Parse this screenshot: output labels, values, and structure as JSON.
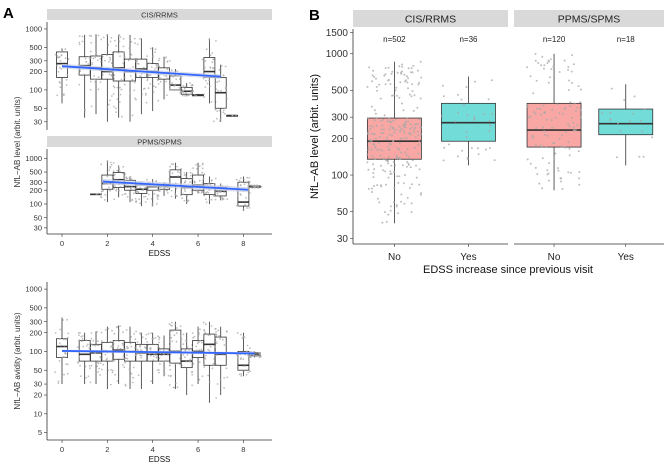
{
  "colors": {
    "strip_bg": "#d9d9d9",
    "trend_line": "#3366ff",
    "trend_ci": "#c8cfe6",
    "point": "#a8a8a8",
    "no_fill": "#f8a7a4",
    "yes_fill": "#72dcd8",
    "box_line": "#333333"
  },
  "panel_a": {
    "label": "A",
    "x_label": "EDSS",
    "x_ticks": [
      0,
      2,
      4,
      6,
      8
    ],
    "subpanels": [
      {
        "strip": "CIS/RRMS",
        "y_label": "NfL−AB level (arbit. units)",
        "y_ticks": [
          30,
          50,
          100,
          200,
          300,
          500,
          1000
        ],
        "y_tick_labels": [
          "30",
          "50",
          "100",
          "200",
          "300",
          "500",
          "1000"
        ],
        "y_range": [
          22,
          1300
        ],
        "show_x_axis": false,
        "trend": {
          "x": [
            0,
            7
          ],
          "y": [
            245,
            165
          ],
          "ci_width": 0.09
        },
        "boxes": [
          {
            "x": 0,
            "min": 60,
            "q1": 160,
            "median": 270,
            "q3": 420,
            "max": 480
          },
          {
            "x": 1,
            "min": 35,
            "q1": 175,
            "median": 250,
            "q3": 350,
            "max": 800
          },
          {
            "x": 1.5,
            "min": 40,
            "q1": 150,
            "median": 230,
            "q3": 360,
            "max": 820
          },
          {
            "x": 2,
            "min": 30,
            "q1": 150,
            "median": 200,
            "q3": 380,
            "max": 820
          },
          {
            "x": 2.5,
            "min": 35,
            "q1": 140,
            "median": 230,
            "q3": 420,
            "max": 800
          },
          {
            "x": 3,
            "min": 30,
            "q1": 140,
            "median": 200,
            "q3": 320,
            "max": 800
          },
          {
            "x": 3.5,
            "min": 40,
            "q1": 160,
            "median": 220,
            "q3": 320,
            "max": 700
          },
          {
            "x": 4,
            "min": 45,
            "q1": 160,
            "median": 200,
            "q3": 270,
            "max": 500
          },
          {
            "x": 4.5,
            "min": 70,
            "q1": 150,
            "median": 190,
            "q3": 230,
            "max": 350
          },
          {
            "x": 5,
            "min": 100,
            "q1": 100,
            "median": 120,
            "q3": 170,
            "max": 220
          },
          {
            "x": 5.5,
            "min": 80,
            "q1": 85,
            "median": 95,
            "q3": 110,
            "max": 130
          },
          {
            "x": 6,
            "min": 80,
            "q1": 80,
            "median": 82,
            "q3": 84,
            "max": 86
          },
          {
            "x": 6.5,
            "min": 60,
            "q1": 160,
            "median": 200,
            "q3": 340,
            "max": 700
          },
          {
            "x": 7,
            "min": 30,
            "q1": 50,
            "median": 90,
            "q3": 160,
            "max": 260
          },
          {
            "x": 7.5,
            "min": 38,
            "q1": 38,
            "median": 38,
            "q3": 38,
            "max": 38
          }
        ]
      },
      {
        "strip": "PPMS/SPMS",
        "y_label": "",
        "y_ticks": [
          30,
          50,
          100,
          200,
          300,
          500,
          1000
        ],
        "y_tick_labels": [
          "30",
          "50",
          "100",
          "200",
          "300",
          "500",
          "1000"
        ],
        "y_range": [
          22,
          1600
        ],
        "show_x_axis": true,
        "trend": {
          "x": [
            1.8,
            8.2
          ],
          "y": [
            310,
            205
          ],
          "ci_width": 0.14
        },
        "boxes": [
          {
            "x": 1.5,
            "min": 160,
            "q1": 160,
            "median": 163,
            "q3": 166,
            "max": 166
          },
          {
            "x": 2,
            "min": 110,
            "q1": 210,
            "median": 280,
            "q3": 430,
            "max": 900
          },
          {
            "x": 2.5,
            "min": 140,
            "q1": 230,
            "median": 340,
            "q3": 490,
            "max": 700
          },
          {
            "x": 3,
            "min": 110,
            "q1": 200,
            "median": 240,
            "q3": 330,
            "max": 400
          },
          {
            "x": 3.5,
            "min": 90,
            "q1": 170,
            "median": 210,
            "q3": 260,
            "max": 300
          },
          {
            "x": 4,
            "min": 90,
            "q1": 200,
            "median": 240,
            "q3": 270,
            "max": 350
          },
          {
            "x": 4.5,
            "min": 150,
            "q1": 210,
            "median": 240,
            "q3": 270,
            "max": 300
          },
          {
            "x": 5,
            "min": 130,
            "q1": 250,
            "median": 390,
            "q3": 560,
            "max": 800
          },
          {
            "x": 5.5,
            "min": 100,
            "q1": 160,
            "median": 230,
            "q3": 360,
            "max": 500
          },
          {
            "x": 6,
            "min": 170,
            "q1": 200,
            "median": 260,
            "q3": 430,
            "max": 800
          },
          {
            "x": 6.5,
            "min": 100,
            "q1": 160,
            "median": 230,
            "q3": 280,
            "max": 400
          },
          {
            "x": 7,
            "min": 120,
            "q1": 150,
            "median": 190,
            "q3": 230,
            "max": 280
          },
          {
            "x": 8,
            "min": 70,
            "q1": 90,
            "median": 110,
            "q3": 300,
            "max": 400
          },
          {
            "x": 8.5,
            "min": 220,
            "q1": 230,
            "median": 240,
            "q3": 250,
            "max": 260
          }
        ]
      },
      {
        "strip": "",
        "y_label": "NfL−AB avidity (arbit. units)",
        "y_ticks": [
          5,
          10,
          20,
          30,
          50,
          100,
          200,
          300,
          500,
          1000
        ],
        "y_tick_labels": [
          "5",
          "10",
          "20",
          "30",
          "50",
          "100",
          "200",
          "300",
          "500",
          "1000"
        ],
        "y_range": [
          3.8,
          1300
        ],
        "show_x_axis": true,
        "trend": {
          "x": [
            0,
            8.5
          ],
          "y": [
            102,
            93
          ],
          "ci_width": 0.05
        },
        "boxes": [
          {
            "x": 0,
            "min": 30,
            "q1": 80,
            "median": 120,
            "q3": 160,
            "max": 350
          },
          {
            "x": 1,
            "min": 30,
            "q1": 70,
            "median": 90,
            "q3": 150,
            "max": 200
          },
          {
            "x": 1.5,
            "min": 30,
            "q1": 70,
            "median": 95,
            "q3": 130,
            "max": 210
          },
          {
            "x": 2,
            "min": 25,
            "q1": 70,
            "median": 100,
            "q3": 140,
            "max": 250
          },
          {
            "x": 2.5,
            "min": 30,
            "q1": 75,
            "median": 105,
            "q3": 150,
            "max": 260
          },
          {
            "x": 3,
            "min": 25,
            "q1": 70,
            "median": 100,
            "q3": 140,
            "max": 250
          },
          {
            "x": 3.5,
            "min": 25,
            "q1": 70,
            "median": 95,
            "q3": 130,
            "max": 200
          },
          {
            "x": 4,
            "min": 30,
            "q1": 70,
            "median": 90,
            "q3": 130,
            "max": 200
          },
          {
            "x": 4.5,
            "min": 40,
            "q1": 70,
            "median": 90,
            "q3": 110,
            "max": 180
          },
          {
            "x": 5,
            "min": 25,
            "q1": 65,
            "median": 100,
            "q3": 220,
            "max": 300
          },
          {
            "x": 5.5,
            "min": 20,
            "q1": 55,
            "median": 70,
            "q3": 110,
            "max": 200
          },
          {
            "x": 6,
            "min": 30,
            "q1": 80,
            "median": 100,
            "q3": 150,
            "max": 250
          },
          {
            "x": 6.5,
            "min": 15,
            "q1": 60,
            "median": 130,
            "q3": 190,
            "max": 300
          },
          {
            "x": 7,
            "min": 20,
            "q1": 60,
            "median": 90,
            "q3": 170,
            "max": 250
          },
          {
            "x": 8,
            "min": 40,
            "q1": 50,
            "median": 60,
            "q3": 100,
            "max": 200
          },
          {
            "x": 8.5,
            "min": 80,
            "q1": 85,
            "median": 90,
            "q3": 95,
            "max": 100
          }
        ]
      }
    ]
  },
  "panel_b": {
    "label": "B",
    "x_label": "EDSS increase since previous visit",
    "y_label": "NfL−AB level (arbit. units)",
    "y_ticks": [
      30,
      50,
      100,
      200,
      300,
      500,
      1000,
      1500
    ],
    "y_tick_labels": [
      "30",
      "50",
      "100",
      "200",
      "300",
      "500",
      "1000",
      "1500"
    ],
    "y_range": [
      27,
      1600
    ],
    "categories": [
      "No",
      "Yes"
    ],
    "facets": [
      {
        "strip": "CIS/RRMS",
        "groups": [
          {
            "category": "No",
            "n_label": "n=502",
            "min": 40,
            "q1": 135,
            "median": 190,
            "q3": 295,
            "max": 860
          },
          {
            "category": "Yes",
            "n_label": "n=36",
            "min": 120,
            "q1": 190,
            "median": 270,
            "q3": 390,
            "max": 650
          }
        ]
      },
      {
        "strip": "PPMS/SPMS",
        "groups": [
          {
            "category": "No",
            "n_label": "n=120",
            "min": 75,
            "q1": 170,
            "median": 235,
            "q3": 390,
            "max": 1000
          },
          {
            "category": "Yes",
            "n_label": "n=18",
            "min": 120,
            "q1": 215,
            "median": 265,
            "q3": 350,
            "max": 560
          }
        ]
      }
    ]
  },
  "chart_data": [
    {
      "type": "box",
      "title": "CIS/RRMS",
      "xlabel": "",
      "ylabel": "NfL−AB level (arbit. units)",
      "y_scale": "log",
      "trend_line": true
    },
    {
      "type": "box",
      "title": "PPMS/SPMS",
      "xlabel": "EDSS",
      "ylabel": "",
      "y_scale": "log",
      "trend_line": true
    },
    {
      "type": "box",
      "title": "",
      "xlabel": "EDSS",
      "ylabel": "NfL−AB avidity (arbit. units)",
      "y_scale": "log",
      "trend_line": true
    },
    {
      "type": "box",
      "facets": [
        "CIS/RRMS",
        "PPMS/SPMS"
      ],
      "categories": [
        "No",
        "Yes"
      ],
      "xlabel": "EDSS increase since previous visit",
      "ylabel": "NfL−AB level (arbit. units)",
      "y_scale": "log",
      "n": {
        "CIS/RRMS": [
          "n=502",
          "n=36"
        ],
        "PPMS/SPMS": [
          "n=120",
          "n=18"
        ]
      }
    }
  ]
}
